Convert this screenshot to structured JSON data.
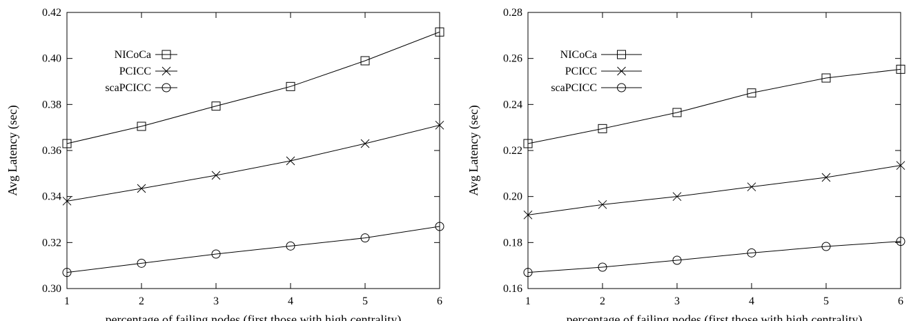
{
  "chart_data": [
    {
      "type": "line",
      "title": "",
      "xlabel": "percentage of failing nodes (first those with high centrality)",
      "ylabel": "Avg Latency (sec)",
      "x": [
        1,
        2,
        3,
        4,
        5,
        6
      ],
      "xlim": [
        1,
        6
      ],
      "ylim": [
        0.3,
        0.42
      ],
      "xticks": [
        "1",
        "2",
        "3",
        "4",
        "5",
        "6"
      ],
      "yticks": [
        "0.30",
        "0.32",
        "0.34",
        "0.36",
        "0.38",
        "0.40",
        "0.42"
      ],
      "grid": false,
      "legend_position": "top-left",
      "series": [
        {
          "name": "NICoCa",
          "marker": "square",
          "values": [
            0.363,
            0.3705,
            0.3793,
            0.3878,
            0.399,
            0.4115
          ]
        },
        {
          "name": "PCICC",
          "marker": "cross",
          "values": [
            0.338,
            0.3435,
            0.3492,
            0.3555,
            0.363,
            0.371
          ]
        },
        {
          "name": "scaPCICC",
          "marker": "circle",
          "values": [
            0.307,
            0.311,
            0.315,
            0.3185,
            0.322,
            0.327
          ]
        }
      ]
    },
    {
      "type": "line",
      "title": "",
      "xlabel": "percentage of failing nodes (first those with high centrality)",
      "ylabel": "Avg Latency (sec)",
      "x": [
        1,
        2,
        3,
        4,
        5,
        6
      ],
      "xlim": [
        1,
        6
      ],
      "ylim": [
        0.16,
        0.28
      ],
      "xticks": [
        "1",
        "2",
        "3",
        "4",
        "5",
        "6"
      ],
      "yticks": [
        "0.16",
        "0.18",
        "0.20",
        "0.22",
        "0.24",
        "0.26",
        "0.28"
      ],
      "grid": false,
      "legend_position": "top-left",
      "series": [
        {
          "name": "NICoCa",
          "marker": "square",
          "values": [
            0.223,
            0.2295,
            0.2365,
            0.245,
            0.2515,
            0.2553
          ]
        },
        {
          "name": "PCICC",
          "marker": "cross",
          "values": [
            0.192,
            0.1965,
            0.2,
            0.2042,
            0.2083,
            0.2135
          ]
        },
        {
          "name": "scaPCICC",
          "marker": "circle",
          "values": [
            0.167,
            0.1693,
            0.1723,
            0.1755,
            0.1783,
            0.1805
          ]
        }
      ]
    }
  ]
}
